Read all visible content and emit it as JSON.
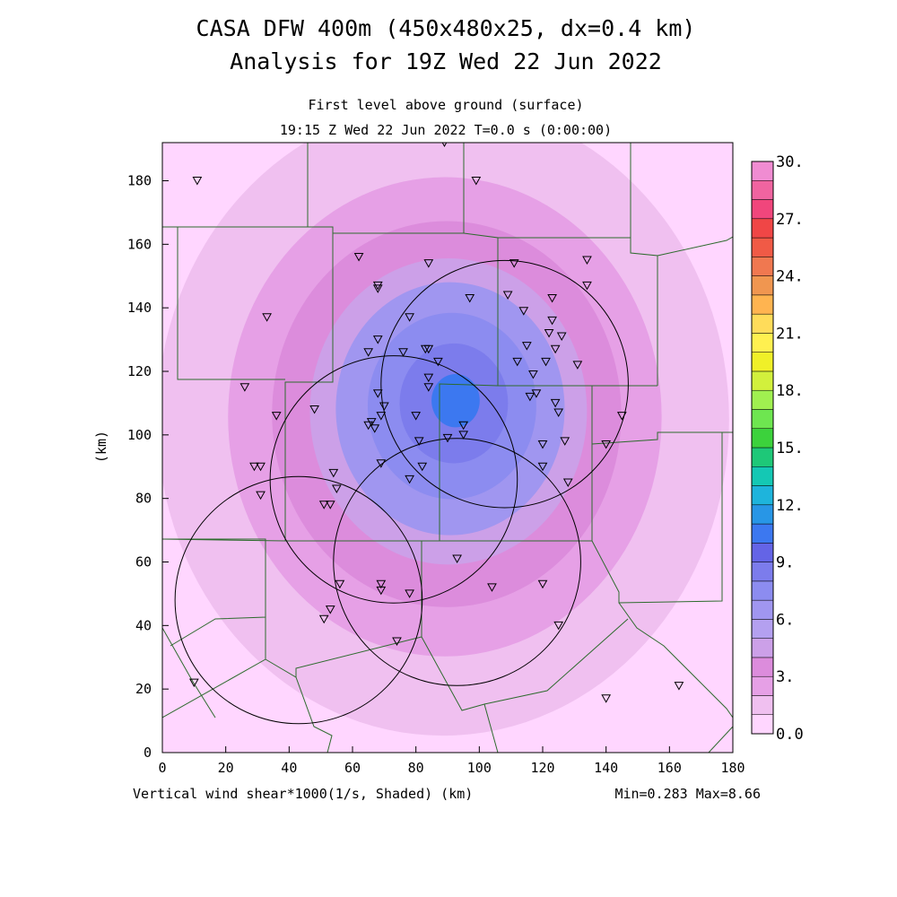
{
  "title": {
    "line1": "CASA DFW 400m (450x480x25, dx=0.4 km)",
    "line2": "Analysis for 19Z Wed 22 Jun 2022"
  },
  "subtitle": {
    "level": "First level above ground (surface)",
    "time": "19:15 Z Wed 22 Jun 2022   T=0.0 s (0:00:00)"
  },
  "footer": {
    "variable": "Vertical wind shear*1000(1/s, Shaded)  (km)",
    "minmax": "Min=0.283 Max=8.66"
  },
  "axes": {
    "xlabel": "",
    "ylabel": "(km)",
    "x_ticks": [
      "0",
      "20",
      "40",
      "60",
      "80",
      "100",
      "120",
      "140",
      "160",
      "180"
    ],
    "y_ticks": [
      "0",
      "20",
      "40",
      "60",
      "80",
      "100",
      "120",
      "140",
      "160",
      "180"
    ],
    "xlim": [
      0,
      180
    ],
    "ylim": [
      0,
      192
    ]
  },
  "colorbar": {
    "labels": [
      "0.0",
      "3.",
      "6.",
      "9.",
      "12.",
      "15.",
      "18.",
      "21.",
      "24.",
      "27.",
      "30."
    ],
    "colors": [
      "#ffd6ff",
      "#f0c0f0",
      "#e6a0e6",
      "#dc8cdc",
      "#cca0e8",
      "#b4a0f0",
      "#a096f0",
      "#8c8cf0",
      "#7c7cec",
      "#6464e6",
      "#3c78f0",
      "#2896e6",
      "#1eb4dc",
      "#14c8b4",
      "#1ec878",
      "#3cd23c",
      "#6ee650",
      "#a0f050",
      "#d2f03c",
      "#f0f028",
      "#fff050",
      "#ffdc5a",
      "#ffb450",
      "#f09650",
      "#f07850",
      "#f05a46",
      "#f04646",
      "#f0467c",
      "#f064a0",
      "#f08cd2"
    ]
  },
  "chart_data": {
    "type": "heatmap",
    "title": "CASA DFW 400m (450x480x25, dx=0.4 km)",
    "field": "Vertical wind shear*1000(1/s, Shaded)",
    "min": 0.283,
    "max": 8.66,
    "center_km": [
      88,
      104
    ],
    "levels": [
      {
        "value": 0.0,
        "color": "#ffd6ff",
        "radius_km": 140
      },
      {
        "value": 1.0,
        "color": "#f0c0f0",
        "radius_km": 95
      },
      {
        "value": 2.0,
        "color": "#e6a0e6",
        "radius_km": 72
      },
      {
        "value": 3.0,
        "color": "#dc8cdc",
        "radius_km": 58
      },
      {
        "value": 4.0,
        "color": "#cca0e8",
        "radius_km": 46
      },
      {
        "value": 5.0,
        "color": "#a096f0",
        "radius_km": 38
      },
      {
        "value": 6.0,
        "color": "#8c8cf0",
        "radius_km": 28
      },
      {
        "value": 7.0,
        "color": "#7c7cec",
        "radius_km": 18
      },
      {
        "value": 8.0,
        "color": "#3c78f0",
        "radius_km": 8
      }
    ],
    "radar_rings": [
      {
        "center": [
          108,
          116
        ],
        "radius_km": 39
      },
      {
        "center": [
          73,
          86
        ],
        "radius_km": 39
      },
      {
        "center": [
          93,
          60
        ],
        "radius_km": 39
      },
      {
        "center": [
          43,
          48
        ],
        "radius_km": 39
      }
    ],
    "stations": [
      [
        11,
        180
      ],
      [
        89,
        192
      ],
      [
        99,
        180
      ],
      [
        62,
        156
      ],
      [
        84,
        154
      ],
      [
        111,
        154
      ],
      [
        134,
        155
      ],
      [
        68,
        147
      ],
      [
        68,
        146
      ],
      [
        134,
        147
      ],
      [
        109,
        144
      ],
      [
        97,
        143
      ],
      [
        123,
        143
      ],
      [
        33,
        137
      ],
      [
        78,
        137
      ],
      [
        114,
        139
      ],
      [
        123,
        136
      ],
      [
        122,
        132
      ],
      [
        126,
        131
      ],
      [
        68,
        130
      ],
      [
        65,
        126
      ],
      [
        76,
        126
      ],
      [
        84,
        127
      ],
      [
        83,
        127
      ],
      [
        115,
        128
      ],
      [
        124,
        127
      ],
      [
        87,
        123
      ],
      [
        112,
        123
      ],
      [
        121,
        123
      ],
      [
        117,
        119
      ],
      [
        131,
        122
      ],
      [
        84,
        118
      ],
      [
        26,
        115
      ],
      [
        84,
        115
      ],
      [
        68,
        113
      ],
      [
        118,
        113
      ],
      [
        116,
        112
      ],
      [
        124,
        110
      ],
      [
        125,
        107
      ],
      [
        36,
        106
      ],
      [
        48,
        108
      ],
      [
        70,
        109
      ],
      [
        80,
        106
      ],
      [
        145,
        106
      ],
      [
        69,
        106
      ],
      [
        66,
        104
      ],
      [
        65,
        103
      ],
      [
        67,
        102
      ],
      [
        95,
        103
      ],
      [
        90,
        99
      ],
      [
        95,
        100
      ],
      [
        81,
        98
      ],
      [
        120,
        97
      ],
      [
        127,
        98
      ],
      [
        140,
        97
      ],
      [
        29,
        90
      ],
      [
        31,
        90
      ],
      [
        69,
        91
      ],
      [
        82,
        90
      ],
      [
        120,
        90
      ],
      [
        128,
        85
      ],
      [
        54,
        88
      ],
      [
        78,
        86
      ],
      [
        55,
        83
      ],
      [
        31,
        81
      ],
      [
        51,
        78
      ],
      [
        53,
        78
      ],
      [
        93,
        61
      ],
      [
        56,
        53
      ],
      [
        69,
        53
      ],
      [
        69,
        51
      ],
      [
        78,
        50
      ],
      [
        104,
        52
      ],
      [
        120,
        53
      ],
      [
        53,
        45
      ],
      [
        51,
        42
      ],
      [
        125,
        40
      ],
      [
        74,
        35
      ],
      [
        10,
        22
      ],
      [
        140,
        17
      ],
      [
        163,
        21
      ]
    ]
  }
}
